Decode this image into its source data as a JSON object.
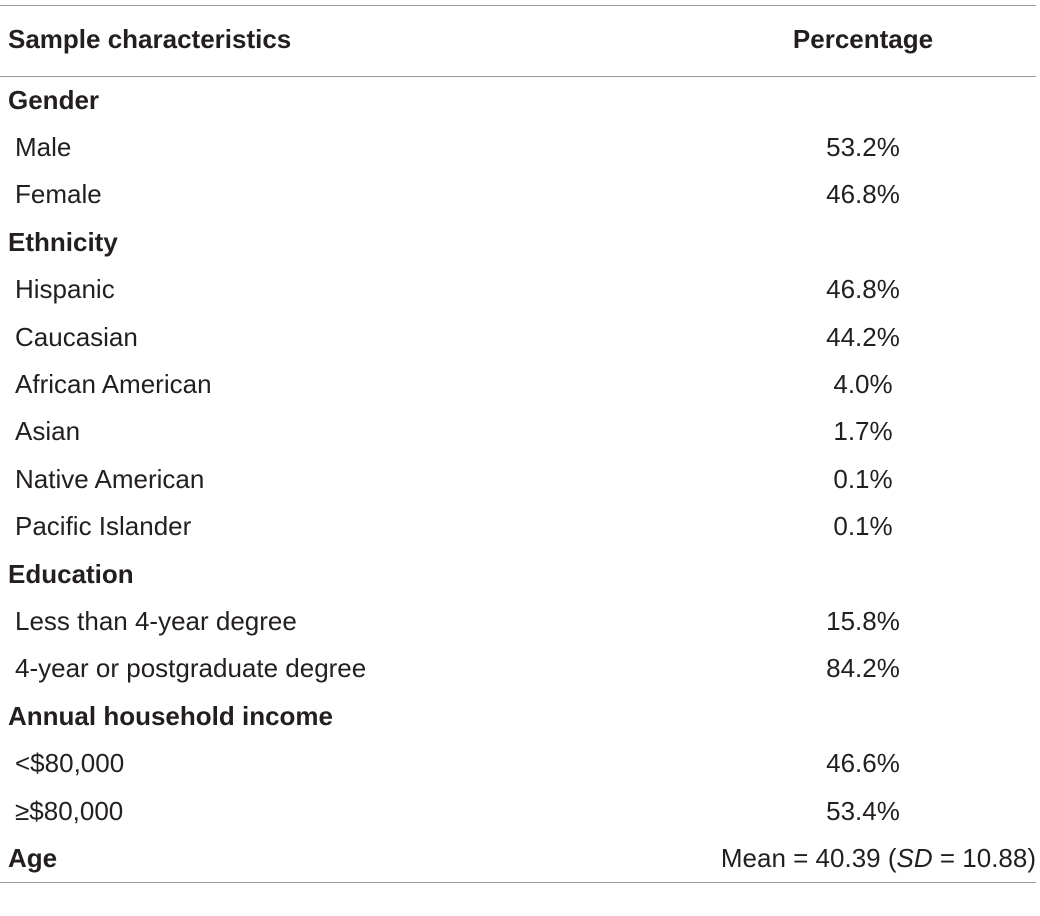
{
  "table": {
    "header": [
      "Sample characteristics",
      "Percentage"
    ],
    "sections": [
      {
        "title": "Gender",
        "rows": [
          [
            "Male",
            "53.2%"
          ],
          [
            "Female",
            "46.8%"
          ]
        ]
      },
      {
        "title": "Ethnicity",
        "rows": [
          [
            "Hispanic",
            "46.8%"
          ],
          [
            "Caucasian",
            "44.2%"
          ],
          [
            "African American",
            "4.0%"
          ],
          [
            "Asian",
            "1.7%"
          ],
          [
            "Native American",
            "0.1%"
          ],
          [
            "Pacific Islander",
            "0.1%"
          ]
        ]
      },
      {
        "title": "Education",
        "rows": [
          [
            "Less than 4-year degree",
            "15.8%"
          ],
          [
            "4-year or postgraduate degree",
            "84.2%"
          ]
        ]
      },
      {
        "title": "Annual household income",
        "rows": [
          [
            "<$80,000",
            "46.6%"
          ],
          [
            "≥$80,000",
            "53.4%"
          ]
        ]
      },
      {
        "title": "Age",
        "value": [
          "Mean = 40.39 (",
          "SD",
          " = 10.88)"
        ]
      }
    ]
  }
}
